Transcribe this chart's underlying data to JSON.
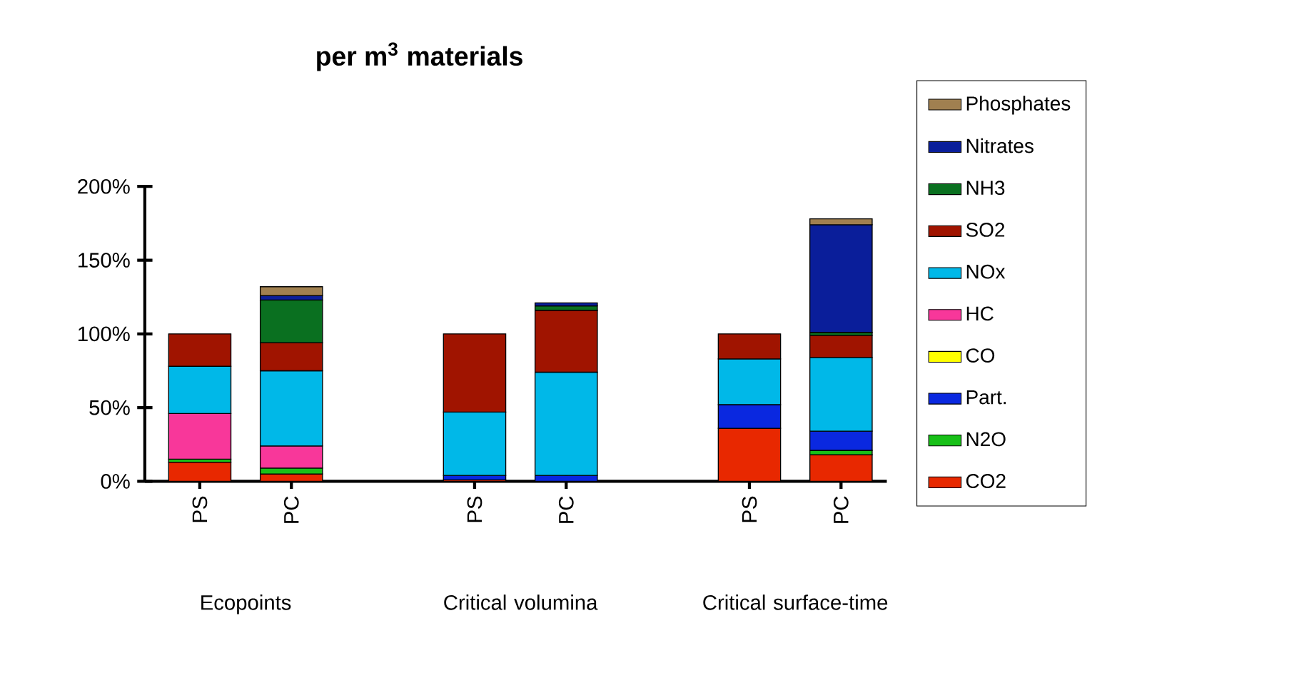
{
  "chart_data": {
    "type": "bar",
    "title": "per m$^{3}$ materials",
    "stacked": true,
    "legend": "right",
    "categories": [
      "PS",
      "PC",
      null,
      "PS",
      "PC",
      null,
      "PS",
      "PC"
    ],
    "annotations": [
      "Ecopoints",
      "Critical volumina",
      "Critical surface-time"
    ],
    "ylim": [
      0,
      200
    ],
    "yticks": [
      {
        "value": 0,
        "label": "0%"
      },
      {
        "value": 50,
        "label": "50%"
      },
      {
        "value": 100,
        "label": "100%"
      },
      {
        "value": 150,
        "label": "150%"
      },
      {
        "value": 200,
        "label": "200%"
      }
    ],
    "series": [
      {
        "name": "CO2",
        "color": "#e82800",
        "values": [
          13,
          5,
          null,
          1,
          null,
          null,
          36,
          18
        ]
      },
      {
        "name": "N2O",
        "color": "#18c018",
        "values": [
          2,
          4,
          null,
          null,
          null,
          null,
          null,
          3
        ]
      },
      {
        "name": "Part.",
        "color": "#0a28e0",
        "values": [
          null,
          null,
          null,
          3,
          4,
          null,
          16,
          13
        ]
      },
      {
        "name": "CO",
        "color": "#ffff00",
        "values": [
          null,
          null,
          null,
          null,
          null,
          null,
          null,
          null
        ]
      },
      {
        "name": "HC",
        "color": "#f8379a",
        "values": [
          31,
          15,
          null,
          null,
          null,
          null,
          null,
          null
        ]
      },
      {
        "name": "NOx",
        "color": "#00b8e8",
        "values": [
          32,
          51,
          null,
          43,
          70,
          null,
          31,
          50
        ]
      },
      {
        "name": "SO2",
        "color": "#a01400",
        "values": [
          22,
          19,
          null,
          53,
          42,
          null,
          17,
          15
        ]
      },
      {
        "name": "NH3",
        "color": "#0a7020",
        "values": [
          null,
          29,
          null,
          null,
          3,
          null,
          null,
          2
        ]
      },
      {
        "name": "Nitrates",
        "color": "#0a1e9a",
        "values": [
          null,
          3,
          null,
          null,
          2,
          null,
          null,
          73
        ]
      },
      {
        "name": "Phosphates",
        "color": "#a08050",
        "values": [
          null,
          6,
          null,
          null,
          null,
          null,
          null,
          4
        ]
      }
    ]
  }
}
